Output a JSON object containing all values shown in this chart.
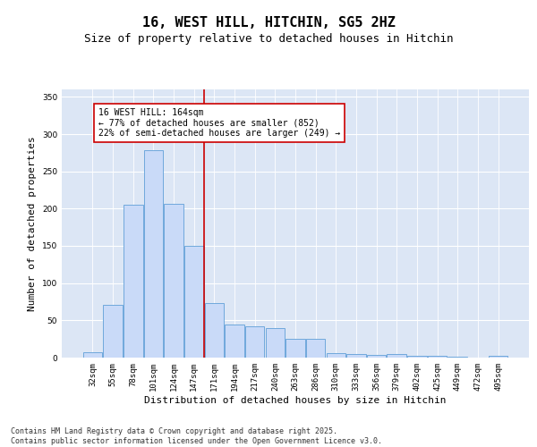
{
  "title1": "16, WEST HILL, HITCHIN, SG5 2HZ",
  "title2": "Size of property relative to detached houses in Hitchin",
  "xlabel": "Distribution of detached houses by size in Hitchin",
  "ylabel": "Number of detached properties",
  "categories": [
    "32sqm",
    "55sqm",
    "78sqm",
    "101sqm",
    "124sqm",
    "147sqm",
    "171sqm",
    "194sqm",
    "217sqm",
    "240sqm",
    "263sqm",
    "286sqm",
    "310sqm",
    "333sqm",
    "356sqm",
    "379sqm",
    "402sqm",
    "425sqm",
    "449sqm",
    "472sqm",
    "495sqm"
  ],
  "values": [
    7,
    71,
    205,
    278,
    207,
    150,
    73,
    44,
    42,
    40,
    25,
    25,
    6,
    5,
    4,
    5,
    3,
    2,
    1,
    0,
    2
  ],
  "bar_color": "#c9daf8",
  "bar_edge_color": "#6fa8dc",
  "vline_x": 5.5,
  "annotation_text": "16 WEST HILL: 164sqm\n← 77% of detached houses are smaller (852)\n22% of semi-detached houses are larger (249) →",
  "annotation_box_color": "#ffffff",
  "annotation_box_edge_color": "#cc0000",
  "vline_color": "#cc0000",
  "ylim": [
    0,
    360
  ],
  "yticks": [
    0,
    50,
    100,
    150,
    200,
    250,
    300,
    350
  ],
  "background_color": "#dce6f5",
  "footer_text": "Contains HM Land Registry data © Crown copyright and database right 2025.\nContains public sector information licensed under the Open Government Licence v3.0.",
  "title_fontsize": 11,
  "subtitle_fontsize": 9,
  "xlabel_fontsize": 8,
  "ylabel_fontsize": 8,
  "tick_fontsize": 6.5,
  "annotation_fontsize": 7,
  "footer_fontsize": 6
}
